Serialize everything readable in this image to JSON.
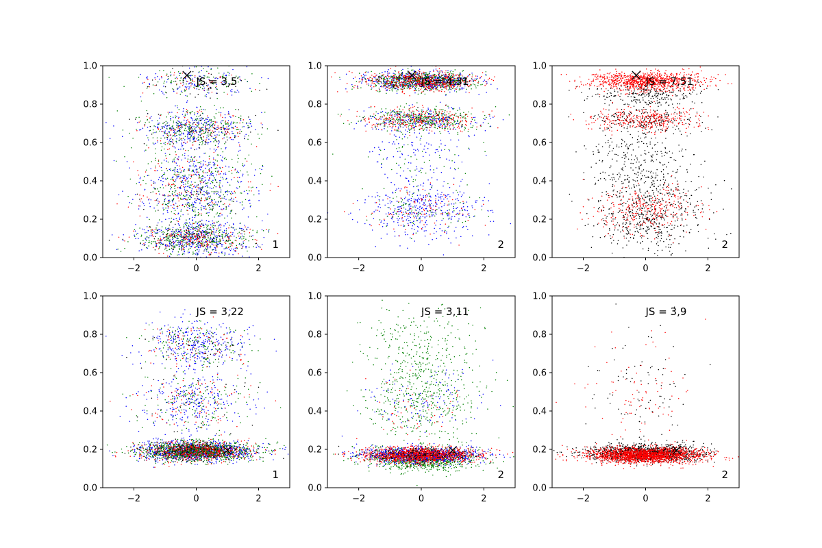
{
  "chart_data": [
    {
      "type": "scatter",
      "annotation": "JS = 3,5",
      "corner_label": "1",
      "xlim": [
        -3,
        3
      ],
      "ylim": [
        0,
        1
      ],
      "xticks": [
        "−2",
        "0",
        "2"
      ],
      "yticks": [
        "0.0",
        "0.2",
        "0.4",
        "0.6",
        "0.8",
        "1.0"
      ],
      "marker": {
        "x": -0.3,
        "y": 0.95
      },
      "series": [
        {
          "color": "#0000ff",
          "count": 1300,
          "clusters": [
            [
              0.1,
              0.05,
              0.35
            ],
            [
              0.3,
              0.05,
              0.15
            ],
            [
              0.45,
              0.06,
              0.15
            ],
            [
              0.67,
              0.05,
              0.25
            ],
            [
              0.92,
              0.04,
              0.1
            ]
          ]
        },
        {
          "color": "#008000",
          "count": 1100,
          "clusters": [
            [
              0.1,
              0.04,
              0.35
            ],
            [
              0.3,
              0.05,
              0.15
            ],
            [
              0.45,
              0.06,
              0.15
            ],
            [
              0.67,
              0.05,
              0.25
            ],
            [
              0.92,
              0.04,
              0.1
            ]
          ]
        },
        {
          "color": "#ff0000",
          "count": 500,
          "clusters": [
            [
              0.1,
              0.04,
              0.35
            ],
            [
              0.3,
              0.05,
              0.15
            ],
            [
              0.45,
              0.06,
              0.15
            ],
            [
              0.67,
              0.05,
              0.25
            ],
            [
              0.92,
              0.04,
              0.1
            ]
          ]
        },
        {
          "color": "#000000",
          "count": 250,
          "clusters": [
            [
              0.1,
              0.04,
              0.35
            ],
            [
              0.3,
              0.05,
              0.15
            ],
            [
              0.67,
              0.05,
              0.3
            ],
            [
              0.92,
              0.04,
              0.2
            ]
          ]
        }
      ]
    },
    {
      "type": "scatter",
      "annotation": "JS = 4,31",
      "corner_label": "2",
      "xlim": [
        -3,
        3
      ],
      "ylim": [
        0,
        1
      ],
      "xticks": [
        "−2",
        "0",
        "2"
      ],
      "yticks": [
        "0.0",
        "0.2",
        "0.4",
        "0.6",
        "0.8",
        "1.0"
      ],
      "marker": {
        "x": -0.3,
        "y": 0.95
      },
      "series": [
        {
          "color": "#0000ff",
          "count": 1300,
          "clusters": [
            [
              0.92,
              0.025,
              0.45
            ],
            [
              0.72,
              0.03,
              0.15
            ],
            [
              0.25,
              0.07,
              0.3
            ],
            [
              0.55,
              0.07,
              0.1
            ]
          ]
        },
        {
          "color": "#008000",
          "count": 1100,
          "clusters": [
            [
              0.92,
              0.025,
              0.55
            ],
            [
              0.72,
              0.03,
              0.3
            ],
            [
              0.25,
              0.06,
              0.1
            ],
            [
              0.5,
              0.08,
              0.05
            ]
          ]
        },
        {
          "color": "#ff0000",
          "count": 900,
          "clusters": [
            [
              0.92,
              0.025,
              0.6
            ],
            [
              0.72,
              0.03,
              0.3
            ],
            [
              0.25,
              0.06,
              0.1
            ]
          ]
        },
        {
          "color": "#000000",
          "count": 120,
          "clusters": [
            [
              0.92,
              0.025,
              0.6
            ],
            [
              0.72,
              0.03,
              0.4
            ]
          ]
        }
      ]
    },
    {
      "type": "scatter",
      "annotation": "JS = 7,51",
      "corner_label": "2",
      "xlim": [
        -3,
        3
      ],
      "ylim": [
        0,
        1
      ],
      "xticks": [
        "−2",
        "0",
        "2"
      ],
      "yticks": [
        "0.0",
        "0.2",
        "0.4",
        "0.6",
        "0.8",
        "1.0"
      ],
      "marker": {
        "x": -0.3,
        "y": 0.95
      },
      "series": [
        {
          "color": "#000000",
          "count": 1300,
          "clusters": [
            [
              0.85,
              0.04,
              0.2
            ],
            [
              0.72,
              0.03,
              0.15
            ],
            [
              0.55,
              0.07,
              0.15
            ],
            [
              0.38,
              0.06,
              0.15
            ],
            [
              0.2,
              0.08,
              0.35
            ]
          ]
        },
        {
          "color": "#ff0000",
          "count": 1600,
          "clusters": [
            [
              0.92,
              0.025,
              0.6
            ],
            [
              0.72,
              0.03,
              0.22
            ],
            [
              0.25,
              0.06,
              0.18
            ]
          ]
        }
      ]
    },
    {
      "type": "scatter",
      "annotation": "JS = 3,22",
      "corner_label": "1",
      "xlim": [
        -3,
        3
      ],
      "ylim": [
        0,
        1
      ],
      "xticks": [
        "−2",
        "0",
        "2"
      ],
      "yticks": [
        "0.0",
        "0.2",
        "0.4",
        "0.6",
        "0.8",
        "1.0"
      ],
      "marker": {
        "x": 1.0,
        "y": 0.195
      },
      "series": [
        {
          "color": "#0000ff",
          "count": 1600,
          "clusters": [
            [
              0.19,
              0.025,
              0.65
            ],
            [
              0.75,
              0.06,
              0.2
            ],
            [
              0.45,
              0.08,
              0.15
            ]
          ]
        },
        {
          "color": "#008000",
          "count": 1400,
          "clusters": [
            [
              0.19,
              0.025,
              0.8
            ],
            [
              0.45,
              0.08,
              0.1
            ],
            [
              0.75,
              0.06,
              0.1
            ]
          ]
        },
        {
          "color": "#ff0000",
          "count": 700,
          "clusters": [
            [
              0.19,
              0.025,
              0.75
            ],
            [
              0.45,
              0.08,
              0.15
            ],
            [
              0.75,
              0.06,
              0.1
            ]
          ]
        },
        {
          "color": "#000000",
          "count": 300,
          "clusters": [
            [
              0.19,
              0.025,
              0.8
            ],
            [
              0.45,
              0.08,
              0.1
            ],
            [
              0.75,
              0.06,
              0.1
            ]
          ]
        }
      ]
    },
    {
      "type": "scatter",
      "annotation": "JS = 3,11",
      "corner_label": "2",
      "xlim": [
        -3,
        3
      ],
      "ylim": [
        0,
        1
      ],
      "xticks": [
        "−2",
        "0",
        "2"
      ],
      "yticks": [
        "0.0",
        "0.2",
        "0.4",
        "0.6",
        "0.8",
        "1.0"
      ],
      "marker": {
        "x": 1.0,
        "y": 0.195
      },
      "series": [
        {
          "color": "#008000",
          "count": 1600,
          "clusters": [
            [
              0.15,
              0.03,
              0.55
            ],
            [
              0.5,
              0.15,
              0.35
            ],
            [
              0.8,
              0.1,
              0.1
            ]
          ]
        },
        {
          "color": "#0000ff",
          "count": 1100,
          "clusters": [
            [
              0.17,
              0.02,
              0.9
            ],
            [
              0.45,
              0.1,
              0.1
            ]
          ]
        },
        {
          "color": "#ff0000",
          "count": 1300,
          "clusters": [
            [
              0.17,
              0.02,
              0.95
            ],
            [
              0.4,
              0.1,
              0.05
            ]
          ]
        },
        {
          "color": "#000000",
          "count": 200,
          "clusters": [
            [
              0.17,
              0.02,
              1.0
            ]
          ]
        }
      ]
    },
    {
      "type": "scatter",
      "annotation": "JS = 3,9",
      "corner_label": "2",
      "xlim": [
        -3,
        3
      ],
      "ylim": [
        0,
        1
      ],
      "xticks": [
        "−2",
        "0",
        "2"
      ],
      "yticks": [
        "0.0",
        "0.2",
        "0.4",
        "0.6",
        "0.8",
        "1.0"
      ],
      "marker": {
        "x": 1.0,
        "y": 0.195
      },
      "series": [
        {
          "color": "#000000",
          "count": 1400,
          "clusters": [
            [
              0.18,
              0.022,
              0.94
            ],
            [
              0.5,
              0.15,
              0.06
            ]
          ]
        },
        {
          "color": "#ff0000",
          "count": 2000,
          "clusters": [
            [
              0.17,
              0.02,
              0.96
            ],
            [
              0.5,
              0.15,
              0.04
            ]
          ]
        }
      ]
    }
  ]
}
